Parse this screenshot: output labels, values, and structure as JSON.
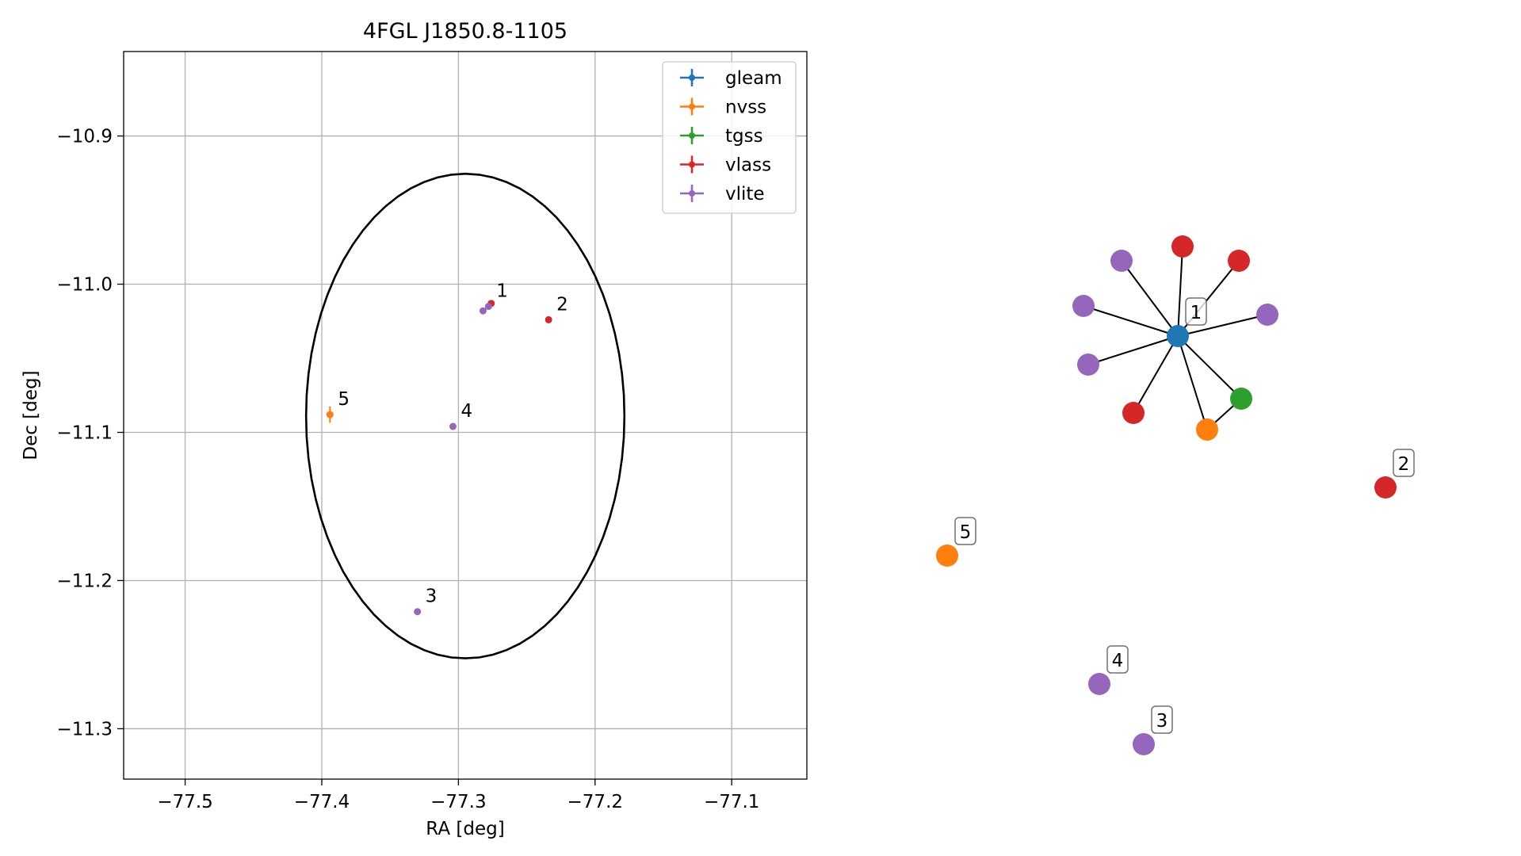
{
  "chart_data": [
    {
      "type": "scatter",
      "title": "4FGL J1850.8-1105",
      "xlabel": "RA [deg]",
      "ylabel": "Dec [deg]",
      "xlim": [
        -77.545,
        -77.045
      ],
      "ylim": [
        -11.334,
        -10.843
      ],
      "x_ticks": [
        -77.5,
        -77.4,
        -77.3,
        -77.2,
        -77.1
      ],
      "x_tick_labels": [
        "−77.5",
        "−77.4",
        "−77.3",
        "−77.2",
        "−77.1"
      ],
      "y_ticks": [
        -10.9,
        -11.0,
        -11.1,
        -11.2,
        -11.3
      ],
      "y_tick_labels": [
        "−10.9",
        "−11.0",
        "−11.1",
        "−11.2",
        "−11.3"
      ],
      "grid": true,
      "legend_position": "top-right",
      "ellipse": {
        "center": [
          -77.295,
          -11.089
        ],
        "semi_axis_ra": 0.1165,
        "semi_axis_dec": 0.1635
      },
      "series": [
        {
          "name": "gleam",
          "color": "#1f77b4",
          "points": []
        },
        {
          "name": "nvss",
          "color": "#ff7f0e",
          "points": [
            {
              "x": -77.394,
              "y": -11.088,
              "yerr": 0.0055,
              "label": "5"
            }
          ]
        },
        {
          "name": "tgss",
          "color": "#2ca02c",
          "points": []
        },
        {
          "name": "vlass",
          "color": "#d62728",
          "points": [
            {
              "x": -77.234,
              "y": -11.024,
              "label": "2"
            },
            {
              "x": -77.276,
              "y": -11.013,
              "label": ""
            }
          ]
        },
        {
          "name": "vlite",
          "color": "#9467bd",
          "points": [
            {
              "x": -77.278,
              "y": -11.015,
              "label": "1"
            },
            {
              "x": -77.282,
              "y": -11.018,
              "label": ""
            },
            {
              "x": -77.304,
              "y": -11.096,
              "label": "4"
            },
            {
              "x": -77.33,
              "y": -11.221,
              "label": "3"
            }
          ]
        }
      ]
    },
    {
      "type": "network",
      "nodes": [
        {
          "id": "hub",
          "series": "gleam",
          "label": "1"
        },
        {
          "id": "n1",
          "series": "vlass",
          "label": ""
        },
        {
          "id": "n2",
          "series": "vlass",
          "label": ""
        },
        {
          "id": "n3",
          "series": "vlite",
          "label": ""
        },
        {
          "id": "n4",
          "series": "vlite",
          "label": ""
        },
        {
          "id": "n5",
          "series": "vlite",
          "label": ""
        },
        {
          "id": "n6",
          "series": "vlite",
          "label": ""
        },
        {
          "id": "n7",
          "series": "vlass",
          "label": ""
        },
        {
          "id": "n8",
          "series": "nvss",
          "label": ""
        },
        {
          "id": "n9",
          "series": "tgss",
          "label": ""
        },
        {
          "id": "s2",
          "series": "vlass",
          "label": "2"
        },
        {
          "id": "s5",
          "series": "nvss",
          "label": "5"
        },
        {
          "id": "s4",
          "series": "vlite",
          "label": "4"
        },
        {
          "id": "s3",
          "series": "vlite",
          "label": "3"
        }
      ],
      "edges": [
        [
          "hub",
          "n1"
        ],
        [
          "hub",
          "n2"
        ],
        [
          "hub",
          "n3"
        ],
        [
          "hub",
          "n4"
        ],
        [
          "hub",
          "n5"
        ],
        [
          "hub",
          "n6"
        ],
        [
          "hub",
          "n7"
        ],
        [
          "hub",
          "n8"
        ],
        [
          "hub",
          "n9"
        ],
        [
          "n8",
          "n9"
        ]
      ]
    }
  ]
}
